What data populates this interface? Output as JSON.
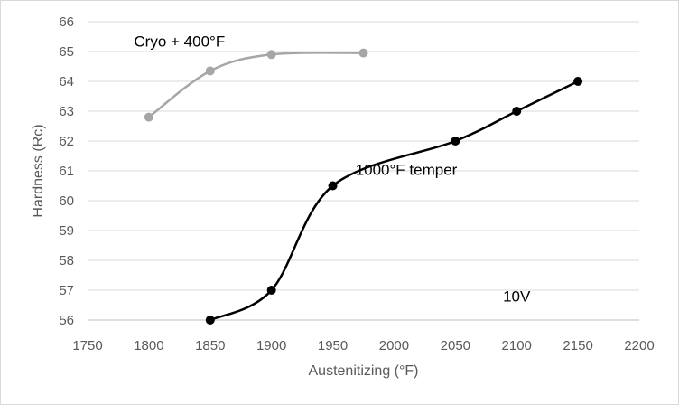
{
  "chart_data": {
    "type": "line",
    "title": "",
    "xlabel": "Austenitizing (°F)",
    "ylabel": "Hardness (Rc)",
    "xlim": [
      1750,
      2200
    ],
    "ylim": [
      56,
      66
    ],
    "xticks": [
      1750,
      1800,
      1850,
      1900,
      1950,
      2000,
      2050,
      2100,
      2150,
      2200
    ],
    "yticks": [
      56,
      57,
      58,
      59,
      60,
      61,
      62,
      63,
      64,
      65,
      66
    ],
    "grid": "horizontal",
    "legend": "none",
    "series": [
      {
        "color": "#a6a6a6",
        "smooth": true,
        "x": [
          1800,
          1850,
          1900,
          1975
        ],
        "y": [
          62.8,
          64.35,
          64.9,
          64.95
        ]
      },
      {
        "color": "#000000",
        "smooth": true,
        "x": [
          1850,
          1900,
          1950,
          2050,
          2100,
          2150
        ],
        "y": [
          56.0,
          57.0,
          60.5,
          62.0,
          63.0,
          64.0
        ]
      }
    ],
    "annotations": [
      {
        "text": "Cryo + 400°F",
        "x": 1825,
        "y": 65.35
      },
      {
        "text": "1000°F temper",
        "x": 2010,
        "y": 61.05
      },
      {
        "text": "10V",
        "x": 2100,
        "y": 56.8
      }
    ]
  }
}
